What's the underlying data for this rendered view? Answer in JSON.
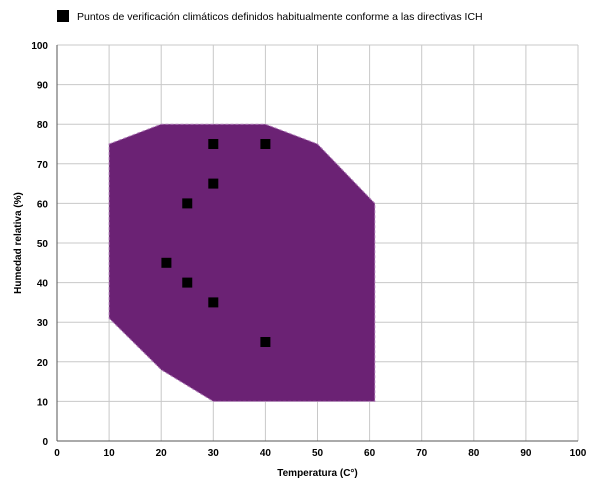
{
  "chart_data": {
    "type": "scatter",
    "legend": {
      "label": "Puntos de verificación climáticos definidos habitualmente conforme a las directivas ICH",
      "placement": "top-left",
      "marker": "square"
    },
    "xlabel": "Temperatura (C°)",
    "ylabel": "Humedad relativa (%)",
    "xlim": [
      0,
      100
    ],
    "ylim": [
      0,
      100
    ],
    "xticks": [
      "0",
      "10",
      "20",
      "30",
      "40",
      "50",
      "60",
      "70",
      "80",
      "90",
      "100"
    ],
    "yticks": [
      "0",
      "10",
      "20",
      "30",
      "40",
      "50",
      "60",
      "70",
      "80",
      "90",
      "100"
    ],
    "grid": true,
    "region": {
      "color": "#6b2274",
      "border": "dashed",
      "vertices": [
        [
          10,
          75
        ],
        [
          20,
          80
        ],
        [
          40,
          80
        ],
        [
          50,
          75
        ],
        [
          61,
          60
        ],
        [
          61,
          10
        ],
        [
          30,
          10
        ],
        [
          20,
          18
        ],
        [
          10,
          31
        ]
      ]
    },
    "series": [
      {
        "name": "Puntos de verificación climáticos definidos habitualmente conforme a las directivas ICH",
        "color": "#000000",
        "points": [
          {
            "x": 30,
            "y": 75
          },
          {
            "x": 40,
            "y": 75
          },
          {
            "x": 30,
            "y": 65
          },
          {
            "x": 25,
            "y": 60
          },
          {
            "x": 21,
            "y": 45
          },
          {
            "x": 25,
            "y": 40
          },
          {
            "x": 30,
            "y": 35
          },
          {
            "x": 40,
            "y": 25
          }
        ]
      }
    ]
  }
}
